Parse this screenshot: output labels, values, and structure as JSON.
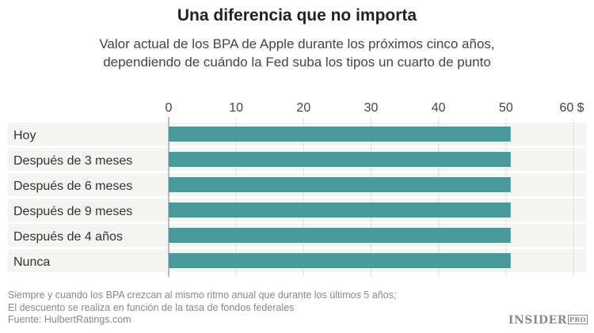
{
  "chart_data": {
    "type": "bar",
    "orientation": "horizontal",
    "title": "Una diferencia que no importa",
    "subtitle_lines": [
      "Valor actual de los BPA de Apple durante los próximos cinco años,",
      "dependiendo de cuándo la Fed suba los tipos un cuarto de punto"
    ],
    "categories": [
      "Hoy",
      "Después de 3 meses",
      "Después de 6 meses",
      "Después de 9 meses",
      "Después de 4 años",
      "Nunca"
    ],
    "values": [
      50.7,
      50.7,
      50.7,
      50.7,
      50.7,
      50.7
    ],
    "xlim": [
      0,
      60
    ],
    "ticks": [
      "0",
      "10",
      "20",
      "30",
      "40",
      "50",
      "60 $"
    ],
    "tick_values": [
      0,
      10,
      20,
      30,
      40,
      50,
      60
    ],
    "grid": true,
    "bar_color": "#4a9a9c",
    "row_band_color": "#f4f4f2"
  },
  "footnotes": [
    "Siempre y cuando los BPA crezcan al mismo ritmo anual que durante los últimos 5 años;",
    "El descuento se realiza en función de la tasa de fondos federales",
    "Fuente: HulbertRatings.com"
  ],
  "logo": {
    "text": "INSIDER",
    "badge": "PRO"
  }
}
